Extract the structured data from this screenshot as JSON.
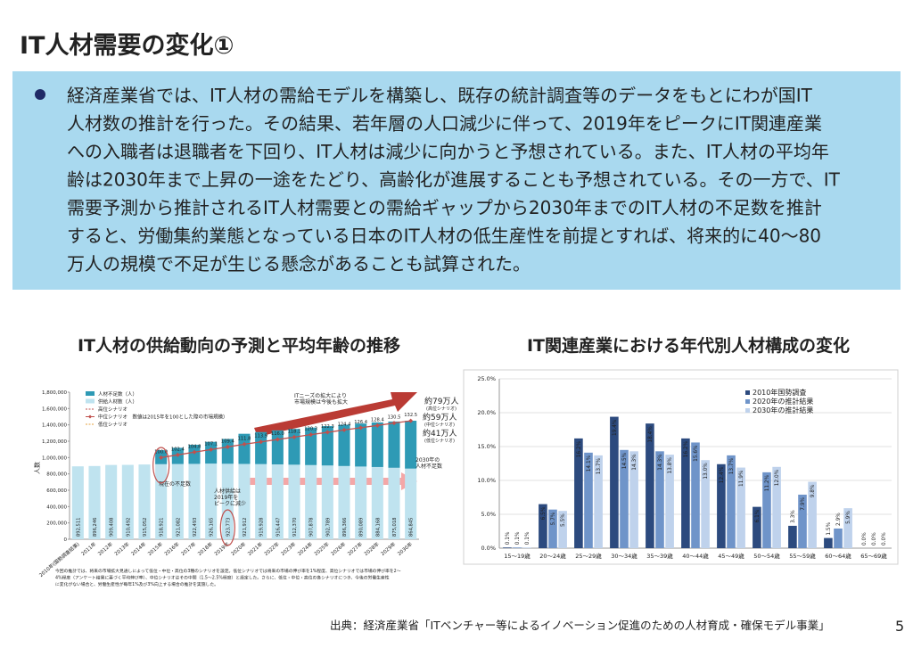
{
  "header": {
    "title": "IT人材需要の変化①"
  },
  "paragraph": {
    "lines": [
      "経済産業省では、IT人材の需給モデルを構築し、既存の統計調査等のデータをもとにわが国IT",
      "人材数の推計を行った。その結果、若年層の人口減少に伴って、2019年をピークにIT関連産業",
      "への入職者は退職者を下回り、IT人材は減少に向かうと予想されている。また、IT人材の平均年",
      "齢は2030年まで上昇の一途をたどり、高齢化が進展することも予想されている。その一方で、IT",
      "需要予測から推計されるIT人材需要との需給ギャップから2030年までのIT人材の不足数を推計",
      "すると、労働集約業態となっている日本のIT人材の低生産性を前提とすれば、将来的に40～80",
      "万人の規模で不足が生じる懸念があることも試算された。"
    ]
  },
  "chart_data": [
    {
      "type": "stacked_bar",
      "title": "IT人材の供給動向の予測と平均年齢の推移",
      "y_label": "人数",
      "categories": [
        "2010年(国勢調査結果)",
        "2011年",
        "2012年",
        "2013年",
        "2014年",
        "2015年",
        "2016年",
        "2017年",
        "2018年",
        "2019年",
        "2020年",
        "2021年",
        "2022年",
        "2023年",
        "2024年",
        "2025年",
        "2026年",
        "2027年",
        "2028年",
        "2029年",
        "2030年"
      ],
      "series": [
        {
          "name": "供給人材数（人）",
          "color": "#bfe3ef",
          "values": [
            892511,
            896246,
            909408,
            910492,
            915052,
            918921,
            921082,
            922493,
            926165,
            923773,
            921912,
            919928,
            916447,
            912370,
            907878,
            902789,
            896366,
            890089,
            884168,
            875018,
            864845
          ],
          "value_labels": [
            "892,511",
            "896,246",
            "909,408",
            "910,492",
            "915,052",
            "918,921",
            "921,082",
            "922,493",
            "926,165",
            "923,773",
            "921,912",
            "919,928",
            "916,447",
            "912,370",
            "907,878",
            "902,789",
            "896,366",
            "890,089",
            "884,168",
            "875,018",
            "864,845"
          ]
        },
        {
          "name": "人材不足数（人）",
          "color": "#2e9ab5",
          "values": [
            null,
            null,
            null,
            null,
            null,
            171000,
            198000,
            234000,
            266000,
            304000,
            369000,
            392000,
            416000,
            438000,
            459000,
            482000,
            505000,
            526000,
            546000,
            566000,
            586000
          ]
        },
        {
          "name": "中位シナリオ　数値は2015年を100とした際の市場規模）",
          "type": "line",
          "axis": "y2",
          "color": "#c0504d",
          "values": [
            null,
            null,
            null,
            null,
            null,
            100,
            102.4,
            104.8,
            107.1,
            109.4,
            111.8,
            113.9,
            116.0,
            118.1,
            120.3,
            122.3,
            124.4,
            126.4,
            128.4,
            130.5,
            132.5
          ],
          "value_labels": [
            null,
            null,
            null,
            null,
            null,
            "100.0",
            "102.4",
            "104.8",
            "107.1",
            "109.4",
            "111.8",
            "113.9",
            "116.0",
            "118.1",
            "120.3",
            "122.3",
            "124.4",
            "126.4",
            "128.4",
            "130.5",
            "132.5"
          ]
        }
      ],
      "extra_legend": [
        {
          "name": "高位シナリオ",
          "color": "#c0504d"
        },
        {
          "name": "低位シナリオ",
          "color": "#e6a23c"
        }
      ],
      "ylim": [
        0,
        1800000
      ],
      "yticks": [
        {
          "value": 0,
          "label": "0"
        },
        {
          "value": 200000,
          "label": "200,000"
        },
        {
          "value": 400000,
          "label": "400,000"
        },
        {
          "value": 600000,
          "label": "600,000"
        },
        {
          "value": 800000,
          "label": "800,000"
        },
        {
          "value": 1000000,
          "label": "1,000,000"
        },
        {
          "value": 1200000,
          "label": "1,200,000"
        },
        {
          "value": 1400000,
          "label": "1,400,000"
        },
        {
          "value": 1600000,
          "label": "1,600,000"
        },
        {
          "value": 1800000,
          "label": "1,800,000"
        }
      ],
      "y2lim": [
        27.8,
        157.8
      ],
      "annotations": [
        {
          "text": "ITニーズの拡大により",
          "color": "#c0504d"
        },
        {
          "text": "市場規模は今後も拡大",
          "color": "#c0504d"
        },
        {
          "text": "約79万人",
          "color": "#c0504d"
        },
        {
          "text": "(高位シナリオ)",
          "color": "#c0504d"
        },
        {
          "text": "約59万人",
          "color": "#c0504d"
        },
        {
          "text": "(中位シナリオ)",
          "color": "#c0504d"
        },
        {
          "text": "約41万人",
          "color": "#5f9a35"
        },
        {
          "text": "(低位シナリオ)",
          "color": "#5f9a35"
        },
        {
          "text": "2030年の",
          "color": "#c0504d"
        },
        {
          "text": "人材不足数",
          "color": "#c0504d"
        },
        {
          "text": "現在の不足数",
          "color": "#c0504d"
        },
        {
          "text": "人材供給は",
          "color": "#c0504d"
        },
        {
          "text": "2019年を",
          "color": "#c0504d"
        },
        {
          "text": "ピークに減少",
          "color": "#c0504d"
        }
      ],
      "notes": [
        "今回の推計では、将来の市場拡大見通しによって低位・中位・高位の3種のシナリオを設定。低位シナリオでは将来の市場の伸び率を1%程度、高位シナリオでは市場の伸び率を2～",
        "4%程度（アンケート結果に基づく平均伸び率）、中位シナリオはその中間（1.5～2.5%程度）と設定した。さらに、低位・中位・高位の各シナリオにつき、今後の労働生産性",
        "に変化がない場合と、労働生産性が毎年1%及び3%向上する場合の推計を実施した。"
      ]
    },
    {
      "type": "grouped_bar",
      "title": "IT関連産業における年代別人材構成の変化",
      "categories": [
        "15～19歳",
        "20～24歳",
        "25～29歳",
        "30～34歳",
        "35～39歳",
        "40～44歳",
        "45～49歳",
        "50～54歳",
        "55～59歳",
        "60～64歳",
        "65～69歳"
      ],
      "series": [
        {
          "name": "2010年国勢調査",
          "color": "#2c4a7e",
          "values": [
            0.1,
            6.5,
            16.2,
            19.4,
            18.4,
            16.2,
            12.4,
            6.1,
            3.3,
            1.5,
            0.0
          ],
          "value_labels": [
            "0.1%",
            "6.5%",
            "16.2%",
            "19.4%",
            "18.4%",
            "16.2%",
            "12.4%",
            "6.1%",
            "3.3%",
            "1.5%",
            "0.0%"
          ]
        },
        {
          "name": "2020年の推計結果",
          "color": "#6f94c9",
          "values": [
            0.1,
            5.7,
            14.1,
            14.5,
            14.3,
            15.6,
            13.7,
            11.2,
            7.9,
            2.9,
            0.0
          ],
          "value_labels": [
            "0.1%",
            "5.7%",
            "14.1%",
            "14.5%",
            "14.3%",
            "15.6%",
            "13.7%",
            "11.2%",
            "7.9%",
            "2.9%",
            "0.0%"
          ]
        },
        {
          "name": "2030年の推計結果",
          "color": "#bfd2ec",
          "values": [
            0.1,
            5.5,
            13.7,
            14.3,
            13.8,
            13.0,
            11.9,
            12.0,
            9.8,
            5.9,
            0.0
          ],
          "value_labels": [
            "0.1%",
            "5.5%",
            "13.7%",
            "14.3%",
            "13.8%",
            "13.0%",
            "11.9%",
            "12.0%",
            "9.8%",
            "5.9%",
            "0.0%"
          ]
        }
      ],
      "ylim": [
        0,
        25
      ],
      "yticks": [
        {
          "value": 0,
          "label": "0.0%"
        },
        {
          "value": 5,
          "label": "5.0%"
        },
        {
          "value": 10,
          "label": "10.0%"
        },
        {
          "value": 15,
          "label": "15.0%"
        },
        {
          "value": 20,
          "label": "20.0%"
        },
        {
          "value": 25,
          "label": "25.0%"
        }
      ],
      "grid": true
    }
  ],
  "source": "出典：経済産業省「ITベンチャー等によるイノベーション促進のための人材育成・確保モデル事業」",
  "page_number": "5"
}
